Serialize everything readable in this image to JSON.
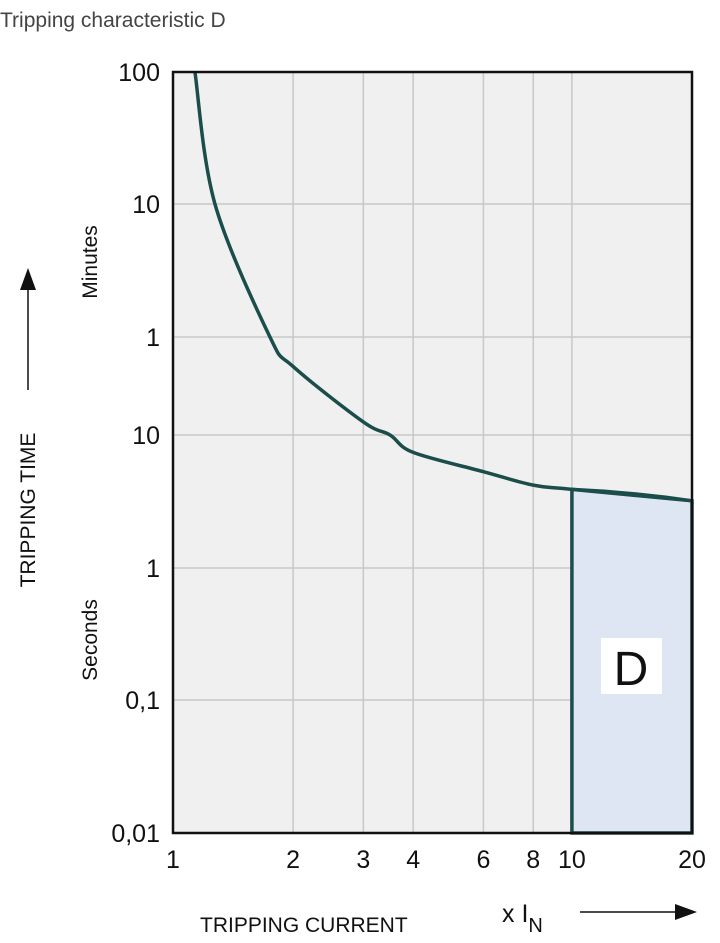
{
  "chart_data": {
    "type": "line",
    "title": "Tripping characteristic D",
    "xlabel": "TRIPPING CURRENT",
    "xunit_prefix": "x I",
    "xunit_sub": "N",
    "ylabel": "TRIPPING TIME",
    "y_section_minutes": "Minutes",
    "y_section_seconds": "Seconds",
    "x_scale": "log",
    "y_scale": "log",
    "xlim": [
      1,
      20
    ],
    "ylim_seconds": [
      0.01,
      6000
    ],
    "grid": true,
    "x_ticks": [
      {
        "value": 1,
        "label": "1"
      },
      {
        "value": 2,
        "label": "2"
      },
      {
        "value": 3,
        "label": "3"
      },
      {
        "value": 4,
        "label": "4"
      },
      {
        "value": 6,
        "label": "6"
      },
      {
        "value": 8,
        "label": "8"
      },
      {
        "value": 10,
        "label": "10"
      },
      {
        "value": 20,
        "label": "20"
      }
    ],
    "y_ticks": [
      {
        "seconds": 0.01,
        "label": "0,01"
      },
      {
        "seconds": 0.1,
        "label": "0,1"
      },
      {
        "seconds": 1,
        "label": "1"
      },
      {
        "seconds": 10,
        "label": "10"
      },
      {
        "seconds": 60,
        "label": "1"
      },
      {
        "seconds": 600,
        "label": "10"
      },
      {
        "seconds": 6000,
        "label": "100"
      }
    ],
    "series": [
      {
        "x": [
          1.135,
          1.274,
          1.75,
          2,
          3,
          3.5,
          4,
          6,
          8,
          10,
          20
        ],
        "y_seconds": [
          6000,
          600,
          60,
          35,
          12.7,
          10,
          7.4,
          5.3,
          4.2,
          3.9,
          3.2
        ]
      }
    ],
    "region": {
      "label": "D",
      "x_range": [
        10,
        20
      ],
      "y_bottom_seconds": 0.01
    },
    "colors": {
      "curve": "#1b4d4a",
      "region_fill": "#dfe6f3",
      "plot_bg": "#f0f0f0",
      "grid": "#c8c8c8"
    }
  }
}
